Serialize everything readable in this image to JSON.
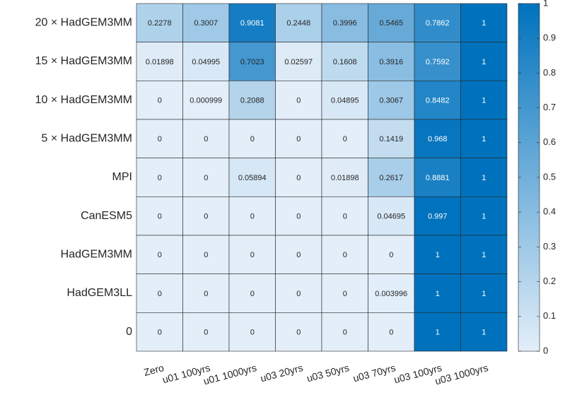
{
  "chart_data": {
    "type": "heatmap",
    "x": [
      "Zero",
      "u01 100yrs",
      "u01 1000yrs",
      "u03 20yrs",
      "u03 50yrs",
      "u03 70yrs",
      "u03 100yrs",
      "u03 1000yrs"
    ],
    "y": [
      "20 × HadGEM3MM",
      "15 × HadGEM3MM",
      "10 × HadGEM3MM",
      "5 × HadGEM3MM",
      "MPI",
      "CanESM5",
      "HadGEM3MM",
      "HadGEM3LL",
      "0"
    ],
    "values": [
      [
        0.2278,
        0.3007,
        0.9081,
        0.2448,
        0.3996,
        0.5465,
        0.7862,
        1
      ],
      [
        0.01898,
        0.04995,
        0.7023,
        0.02597,
        0.1608,
        0.3916,
        0.7592,
        1
      ],
      [
        0,
        0.000999,
        0.2088,
        0,
        0.04895,
        0.3067,
        0.8482,
        1
      ],
      [
        0,
        0,
        0,
        0,
        0,
        0.1419,
        0.968,
        1
      ],
      [
        0,
        0,
        0.05894,
        0,
        0.01898,
        0.2617,
        0.8881,
        1
      ],
      [
        0,
        0,
        0,
        0,
        0,
        0.04695,
        0.997,
        1
      ],
      [
        0,
        0,
        0,
        0,
        0,
        0,
        1,
        1
      ],
      [
        0,
        0,
        0,
        0,
        0,
        0.003996,
        1,
        1
      ],
      [
        0,
        0,
        0,
        0,
        0,
        0,
        1,
        1
      ]
    ],
    "clim": [
      0,
      1
    ],
    "cticks": [
      0,
      0.1,
      0.2,
      0.3,
      0.4,
      0.5,
      0.6,
      0.7,
      0.8,
      0.9,
      1
    ],
    "colormap": [
      "#e3eef9",
      "#0072bd"
    ]
  }
}
